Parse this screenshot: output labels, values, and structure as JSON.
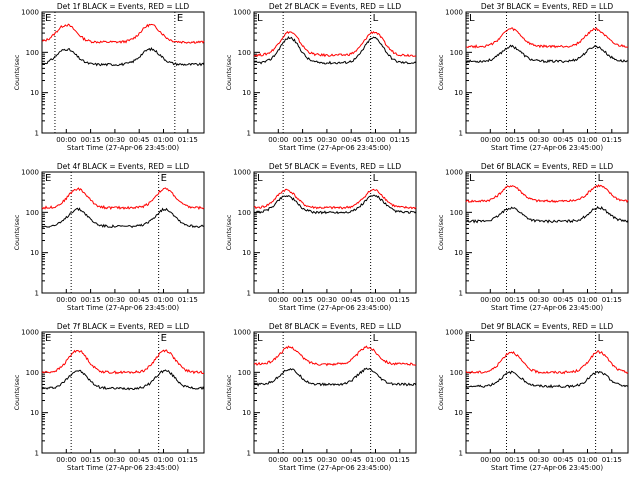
{
  "colors": {
    "events": "#000000",
    "lld": "#ff0000",
    "frame": "#000000",
    "background": "#ffffff"
  },
  "chart_data": [
    {
      "type": "line",
      "title": "Det 1f BLACK = Events, RED = LLD",
      "xlabel": "Start Time (27-Apr-06 23:45:00)",
      "ylabel": "Counts/sec",
      "xticks": [
        "00:00",
        "00:15",
        "00:30",
        "00:45",
        "01:00",
        "01:15"
      ],
      "yticks": [
        "1",
        "10",
        "100",
        "1000"
      ],
      "markers": [
        "E",
        "E"
      ],
      "events": {
        "base": 50,
        "peak": 120,
        "x": [
          0.15,
          0.67
        ]
      },
      "lld": {
        "base": 180,
        "peak": 480,
        "x": [
          0.15,
          0.67
        ]
      },
      "vlines": [
        0.08,
        0.82
      ]
    },
    {
      "type": "line",
      "title": "Det 2f BLACK = Events, RED = LLD",
      "xlabel": "Start Time (27-Apr-06 23:45:00)",
      "ylabel": "Counts/sec",
      "xticks": [
        "00:00",
        "00:15",
        "00:30",
        "00:45",
        "01:00",
        "01:15"
      ],
      "yticks": [
        "1",
        "10",
        "100",
        "1000"
      ],
      "markers": [
        "L",
        "L"
      ],
      "events": {
        "base": 55,
        "peak": 230,
        "x": [
          0.22,
          0.74
        ]
      },
      "lld": {
        "base": 85,
        "peak": 320,
        "x": [
          0.22,
          0.74
        ]
      },
      "vlines": [
        0.18,
        0.72
      ]
    },
    {
      "type": "line",
      "title": "Det 3f BLACK = Events, RED = LLD",
      "xlabel": "Start Time (27-Apr-06 23:45:00)",
      "ylabel": "Counts/sec",
      "xticks": [
        "00:00",
        "00:15",
        "00:30",
        "00:45",
        "01:00",
        "01:15"
      ],
      "yticks": [
        "1",
        "10",
        "100",
        "1000"
      ],
      "markers": [
        "L",
        "L"
      ],
      "events": {
        "base": 60,
        "peak": 140,
        "x": [
          0.28,
          0.8
        ]
      },
      "lld": {
        "base": 140,
        "peak": 380,
        "x": [
          0.28,
          0.8
        ]
      },
      "vlines": [
        0.25,
        0.8
      ]
    },
    {
      "type": "line",
      "title": "Det 4f BLACK = Events, RED = LLD",
      "xlabel": "Start Time (27-Apr-06 23:45:00)",
      "ylabel": "Counts/sec",
      "xticks": [
        "00:00",
        "00:15",
        "00:30",
        "00:45",
        "01:00",
        "01:15"
      ],
      "yticks": [
        "1",
        "10",
        "100",
        "1000"
      ],
      "markers": [
        "E",
        "E"
      ],
      "events": {
        "base": 45,
        "peak": 120,
        "x": [
          0.22,
          0.76
        ]
      },
      "lld": {
        "base": 130,
        "peak": 380,
        "x": [
          0.22,
          0.76
        ]
      },
      "vlines": [
        0.18,
        0.72
      ]
    },
    {
      "type": "line",
      "title": "Det 5f BLACK = Events, RED = LLD",
      "xlabel": "Start Time (27-Apr-06 23:45:00)",
      "ylabel": "Counts/sec",
      "xticks": [
        "00:00",
        "00:15",
        "00:30",
        "00:45",
        "01:00",
        "01:15"
      ],
      "yticks": [
        "1",
        "10",
        "100",
        "1000"
      ],
      "markers": [
        "L",
        "L"
      ],
      "events": {
        "base": 100,
        "peak": 260,
        "x": [
          0.2,
          0.74
        ]
      },
      "lld": {
        "base": 130,
        "peak": 360,
        "x": [
          0.2,
          0.74
        ]
      },
      "vlines": [
        0.18,
        0.72
      ]
    },
    {
      "type": "line",
      "title": "Det 6f BLACK = Events, RED = LLD",
      "xlabel": "Start Time (27-Apr-06 23:45:00)",
      "ylabel": "Counts/sec",
      "xticks": [
        "00:00",
        "00:15",
        "00:30",
        "00:45",
        "01:00",
        "01:15"
      ],
      "yticks": [
        "1",
        "10",
        "100",
        "1000"
      ],
      "markers": [
        "L",
        "L"
      ],
      "events": {
        "base": 60,
        "peak": 130,
        "x": [
          0.28,
          0.82
        ]
      },
      "lld": {
        "base": 190,
        "peak": 460,
        "x": [
          0.28,
          0.82
        ]
      },
      "vlines": [
        0.25,
        0.8
      ]
    },
    {
      "type": "line",
      "title": "Det 7f BLACK = Events, RED = LLD",
      "xlabel": "Start Time (27-Apr-06 23:45:00)",
      "ylabel": "Counts/sec",
      "xticks": [
        "00:00",
        "00:15",
        "00:30",
        "00:45",
        "01:00",
        "01:15"
      ],
      "yticks": [
        "1",
        "10",
        "100",
        "1000"
      ],
      "markers": [
        "E",
        "E"
      ],
      "events": {
        "base": 40,
        "peak": 110,
        "x": [
          0.22,
          0.76
        ]
      },
      "lld": {
        "base": 100,
        "peak": 350,
        "x": [
          0.22,
          0.76
        ]
      },
      "vlines": [
        0.18,
        0.72
      ]
    },
    {
      "type": "line",
      "title": "Det 8f BLACK = Events, RED = LLD",
      "xlabel": "Start Time (27-Apr-06 23:45:00)",
      "ylabel": "Counts/sec",
      "xticks": [
        "00:00",
        "00:15",
        "00:30",
        "00:45",
        "01:00",
        "01:15"
      ],
      "yticks": [
        "1",
        "10",
        "100",
        "1000"
      ],
      "markers": [
        "L",
        "L"
      ],
      "events": {
        "base": 50,
        "peak": 120,
        "x": [
          0.22,
          0.7
        ]
      },
      "lld": {
        "base": 160,
        "peak": 420,
        "x": [
          0.22,
          0.7
        ]
      },
      "vlines": [
        0.18,
        0.72
      ]
    },
    {
      "type": "line",
      "title": "Det 9f BLACK = Events, RED = LLD",
      "xlabel": "Start Time (27-Apr-06 23:45:00)",
      "ylabel": "Counts/sec",
      "xticks": [
        "00:00",
        "00:15",
        "00:30",
        "00:45",
        "01:00",
        "01:15"
      ],
      "yticks": [
        "1",
        "10",
        "100",
        "1000"
      ],
      "markers": [
        "L",
        "L"
      ],
      "events": {
        "base": 45,
        "peak": 100,
        "x": [
          0.28,
          0.82
        ]
      },
      "lld": {
        "base": 100,
        "peak": 320,
        "x": [
          0.28,
          0.82
        ]
      },
      "vlines": [
        0.25,
        0.8
      ]
    }
  ]
}
